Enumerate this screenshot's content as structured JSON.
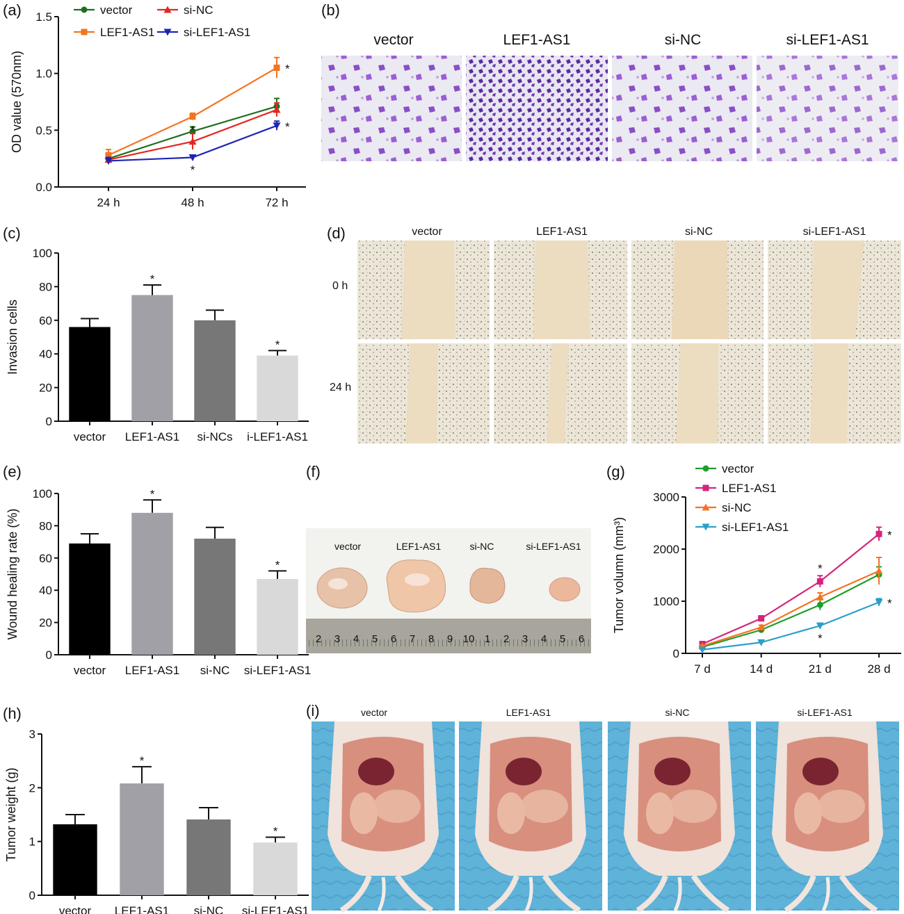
{
  "chart_data": [
    {
      "panel": "(a)",
      "type": "line",
      "categories": [
        "24 h",
        "48 h",
        "72 h"
      ],
      "ylabel": "OD value  (570nm)",
      "ylim": [
        0,
        1.5
      ],
      "yticks": [
        "0.0",
        "0.5",
        "1.0",
        "1.5"
      ],
      "series": [
        {
          "name": "vector",
          "color": "#1e6e1e",
          "marker": "circle",
          "values": [
            0.25,
            0.49,
            0.71
          ],
          "err": [
            0.02,
            0.04,
            0.07
          ],
          "stars": [
            "",
            "",
            ""
          ]
        },
        {
          "name": "LEF1-AS1",
          "color": "#f47321",
          "marker": "square",
          "values": [
            0.28,
            0.62,
            1.05
          ],
          "err": [
            0.05,
            0.03,
            0.09
          ],
          "stars": [
            "",
            "*",
            "*"
          ]
        },
        {
          "name": "si-NC",
          "color": "#e52620",
          "marker": "triangle-up",
          "values": [
            0.24,
            0.4,
            0.68
          ],
          "err": [
            0.02,
            0.07,
            0.06
          ],
          "stars": [
            "",
            "",
            ""
          ]
        },
        {
          "name": "si-LEF1-AS1",
          "color": "#1d24b5",
          "marker": "triangle-down",
          "values": [
            0.23,
            0.26,
            0.54
          ],
          "err": [
            0.03,
            0.02,
            0.04
          ],
          "stars": [
            "",
            "*",
            "*"
          ]
        }
      ]
    },
    {
      "panel": "(c)",
      "type": "bar",
      "categories": [
        "vector",
        "LEF1-AS1",
        "si-NCs",
        "i-LEF1-AS1"
      ],
      "values": [
        56,
        75,
        60,
        39
      ],
      "err": [
        5,
        6,
        6,
        3
      ],
      "stars": [
        "",
        "*",
        "",
        "*"
      ],
      "colors": [
        "#000000",
        "#a0a0a6",
        "#777777",
        "#d9d9d9"
      ],
      "ylabel": "Invasion cells",
      "ylim": [
        0,
        100
      ],
      "yticks": [
        "0",
        "20",
        "40",
        "60",
        "80",
        "100"
      ]
    },
    {
      "panel": "(e)",
      "type": "bar",
      "categories": [
        "vector",
        "LEF1-AS1",
        "si-NC",
        "si-LEF1-AS1"
      ],
      "values": [
        69,
        88,
        72,
        47
      ],
      "err": [
        6,
        8,
        7,
        5
      ],
      "stars": [
        "",
        "*",
        "",
        "*"
      ],
      "colors": [
        "#000000",
        "#a0a0a6",
        "#777777",
        "#d9d9d9"
      ],
      "ylabel": "Wound healing rate (%)",
      "ylim": [
        0,
        100
      ],
      "yticks": [
        "0",
        "20",
        "40",
        "60",
        "80",
        "100"
      ]
    },
    {
      "panel": "(g)",
      "type": "line",
      "categories": [
        "7 d",
        "14 d",
        "21 d",
        "28 d"
      ],
      "ylabel": "Tumor volumn (mm³)",
      "ylim": [
        0,
        3000
      ],
      "yticks": [
        "0",
        "1000",
        "2000",
        "3000"
      ],
      "series": [
        {
          "name": "vector",
          "color": "#1e9e2a",
          "marker": "circle",
          "values": [
            120,
            450,
            930,
            1510
          ],
          "err": [
            20,
            40,
            100,
            150
          ],
          "stars": [
            "",
            "",
            "",
            ""
          ]
        },
        {
          "name": "LEF1-AS1",
          "color": "#d4257a",
          "marker": "square",
          "values": [
            180,
            670,
            1380,
            2290
          ],
          "err": [
            20,
            50,
            110,
            130
          ],
          "stars": [
            "",
            "*",
            "*",
            "*"
          ]
        },
        {
          "name": "si-NC",
          "color": "#f47321",
          "marker": "triangle-up",
          "values": [
            140,
            500,
            1080,
            1580
          ],
          "err": [
            20,
            40,
            80,
            260
          ],
          "stars": [
            "",
            "",
            "",
            ""
          ]
        },
        {
          "name": "si-LEF1-AS1",
          "color": "#2aa0c8",
          "marker": "triangle-down",
          "values": [
            70,
            210,
            530,
            980
          ],
          "err": [
            10,
            20,
            50,
            70
          ],
          "stars": [
            "",
            "",
            "*",
            "*"
          ]
        }
      ]
    },
    {
      "panel": "(h)",
      "type": "bar",
      "categories": [
        "vector",
        "LEF1-AS1",
        "si-NC",
        "si-LEF1-AS1"
      ],
      "values": [
        1.32,
        2.08,
        1.41,
        0.98
      ],
      "err": [
        0.18,
        0.31,
        0.22,
        0.1
      ],
      "stars": [
        "",
        "*",
        "",
        "*"
      ],
      "colors": [
        "#000000",
        "#a0a0a6",
        "#777777",
        "#d9d9d9"
      ],
      "ylabel": "Tumor weight (g)",
      "ylim": [
        0,
        3
      ],
      "yticks": [
        "0",
        "1",
        "2",
        "3"
      ]
    }
  ],
  "images": {
    "b": {
      "panel": "(b)",
      "labels": [
        "vector",
        "LEF1-AS1",
        "si-NC",
        "si-LEF1-AS1"
      ]
    },
    "d": {
      "panel": "(d)",
      "labels": [
        "vector",
        "LEF1-AS1",
        "si-NC",
        "si-LEF1-AS1"
      ],
      "rows": [
        "0 h",
        "24 h"
      ]
    },
    "f": {
      "panel": "(f)",
      "labels": [
        "vector",
        "LEF1-AS1",
        "si-NC",
        "si-LEF1-AS1"
      ],
      "ruler": [
        "2",
        "3",
        "4",
        "5",
        "6",
        "7",
        "8",
        "9",
        "10",
        "1",
        "2",
        "3",
        "4",
        "5",
        "6"
      ]
    },
    "i": {
      "panel": "(i)",
      "labels": [
        "vector",
        "LEF1-AS1",
        "si-NC",
        "si-LEF1-AS1"
      ]
    }
  }
}
